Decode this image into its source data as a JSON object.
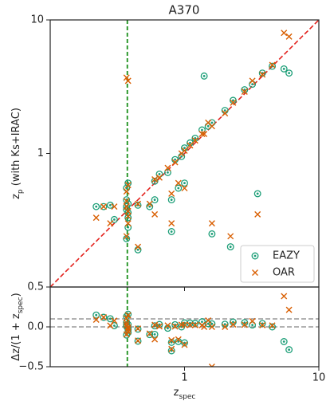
{
  "chart_data": [
    {
      "type": "scatter",
      "title": "A370",
      "log_x": true,
      "log_y": true,
      "ylabel": [
        "z",
        "p",
        " (with Ks+IRAC)"
      ],
      "xlim": [
        0.1,
        10
      ],
      "ylim": [
        0.1,
        10
      ],
      "xticks": [
        1,
        10
      ],
      "yticks": [
        1,
        10
      ],
      "one_to_one": {
        "color": "#e3211c"
      },
      "vlines": [
        {
          "x": 0.375,
          "color": "#1a8f1a"
        }
      ],
      "legend": "lower right",
      "x": [
        0.37,
        0.38,
        0.37,
        0.38,
        0.37,
        0.38,
        0.37,
        0.38,
        0.37,
        0.38,
        0.25,
        0.28,
        0.22,
        0.3,
        0.45,
        0.55,
        0.6,
        0.65,
        0.75,
        0.85,
        0.95,
        1.0,
        1.1,
        1.2,
        1.35,
        1.5,
        1.6,
        2.0,
        2.3,
        2.8,
        3.2,
        3.8,
        4.5,
        5.5,
        6.0,
        0.8,
        1.0,
        1.6,
        3.5,
        2.2,
        0.8,
        0.6,
        1.4,
        0.9,
        0.45
      ],
      "series": [
        {
          "name": "EAZY",
          "color": "#1b9e77",
          "marker": "circle",
          "values": [
            0.4,
            0.36,
            0.45,
            0.33,
            0.55,
            0.28,
            0.23,
            0.42,
            0.38,
            0.6,
            0.4,
            0.41,
            0.4,
            0.32,
            0.41,
            0.4,
            0.62,
            0.7,
            0.72,
            0.9,
            0.95,
            1.1,
            1.2,
            1.3,
            1.5,
            1.6,
            1.7,
            2.1,
            2.5,
            3.0,
            3.3,
            4.0,
            4.5,
            4.3,
            4.0,
            0.45,
            0.6,
            0.25,
            0.5,
            0.2,
            0.26,
            0.45,
            3.8,
            0.55,
            0.19
          ]
        },
        {
          "name": "OAR",
          "color": "#d95f02",
          "marker": "x",
          "values": [
            0.4,
            0.37,
            0.44,
            0.34,
            0.52,
            0.3,
            0.24,
            3.5,
            3.7,
            0.58,
            0.4,
            0.3,
            0.33,
            0.4,
            0.42,
            0.42,
            0.64,
            0.66,
            0.78,
            0.86,
            1.0,
            1.05,
            1.15,
            1.25,
            1.4,
            1.7,
            1.6,
            2.0,
            2.4,
            2.9,
            3.5,
            3.9,
            4.6,
            8.0,
            7.5,
            0.5,
            0.55,
            0.3,
            0.35,
            0.24,
            0.3,
            0.35,
            1.4,
            0.6,
            0.2
          ]
        }
      ]
    },
    {
      "type": "scatter",
      "log_x": true,
      "log_y": false,
      "xlabel": [
        "z",
        "spec"
      ],
      "ylabel": [
        "Δz/(1 + z",
        "spec",
        ")"
      ],
      "xlim": [
        0.1,
        10
      ],
      "ylim": [
        -0.5,
        0.5
      ],
      "xticks": [
        1,
        10
      ],
      "yticks": [
        {
          "value": -0.5,
          "label": "−0.5"
        },
        {
          "value": 0,
          "label": "0.0"
        },
        0.5
      ],
      "hlines": [
        0.1,
        0
      ],
      "vlines": [
        {
          "x": 0.375,
          "color": "#1a8f1a"
        }
      ],
      "x": [
        0.37,
        0.38,
        0.37,
        0.38,
        0.37,
        0.38,
        0.37,
        0.38,
        0.37,
        0.38,
        0.25,
        0.28,
        0.22,
        0.3,
        0.45,
        0.55,
        0.6,
        0.65,
        0.75,
        0.85,
        0.95,
        1.0,
        1.1,
        1.2,
        1.35,
        1.5,
        1.6,
        2.0,
        2.3,
        2.8,
        3.2,
        3.8,
        4.5,
        5.5,
        6.0,
        0.8,
        1.0,
        1.6,
        3.5,
        2.2,
        0.8,
        0.6,
        1.4,
        0.9,
        0.45
      ],
      "series": [
        {
          "name": "EAZY",
          "color": "#1b9e77",
          "marker": "circle",
          "values": [
            0.022,
            -0.014,
            0.058,
            -0.036,
            0.131,
            -0.072,
            -0.102,
            0.029,
            0.007,
            0.159,
            0.12,
            0.102,
            0.148,
            0.015,
            -0.028,
            -0.097,
            0.013,
            0.03,
            -0.017,
            0.027,
            0,
            0.05,
            0.048,
            0.045,
            0.064,
            0.04,
            0.038,
            0.033,
            0.061,
            0.053,
            0.024,
            0.042,
            0,
            -0.185,
            -0.286,
            -0.194,
            -0.2,
            null,
            null,
            null,
            -0.3,
            -0.094,
            null,
            -0.184,
            -0.179
          ]
        },
        {
          "name": "OAR",
          "color": "#d95f02",
          "marker": "x",
          "values": [
            0.022,
            -0.007,
            0.051,
            -0.029,
            0.109,
            -0.058,
            -0.095,
            null,
            null,
            0.145,
            0.12,
            0.016,
            0.09,
            0.077,
            -0.021,
            -0.084,
            0.025,
            0.006,
            0.017,
            0.005,
            0.026,
            0.025,
            0.024,
            0.023,
            0.021,
            0.08,
            0,
            0,
            0.03,
            0.026,
            0.071,
            0.021,
            0.018,
            0.385,
            0.214,
            -0.167,
            -0.225,
            -0.5,
            null,
            null,
            -0.278,
            -0.156,
            0,
            -0.158,
            -0.172
          ]
        }
      ]
    }
  ]
}
